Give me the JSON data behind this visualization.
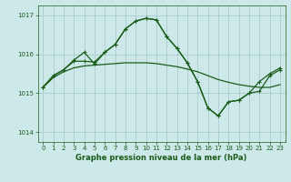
{
  "bg_color": "#cce8e8",
  "grid_color": "#aacccc",
  "line_color": "#1a5c1a",
  "title": "Graphe pression niveau de la mer (hPa)",
  "xlim": [
    -0.5,
    23.5
  ],
  "ylim": [
    1013.75,
    1017.25
  ],
  "yticks": [
    1014,
    1015,
    1016,
    1017
  ],
  "xticks": [
    0,
    1,
    2,
    3,
    4,
    5,
    6,
    7,
    8,
    9,
    10,
    11,
    12,
    13,
    14,
    15,
    16,
    17,
    18,
    19,
    20,
    21,
    22,
    23
  ],
  "series1_x": [
    0,
    1,
    2,
    3,
    4,
    5,
    6,
    7,
    8,
    9,
    10,
    11,
    12,
    13,
    14,
    15,
    16,
    17,
    18,
    19,
    20,
    21,
    22,
    23
  ],
  "series1_y": [
    1015.15,
    1015.4,
    1015.55,
    1015.65,
    1015.7,
    1015.72,
    1015.74,
    1015.76,
    1015.78,
    1015.78,
    1015.78,
    1015.76,
    1015.72,
    1015.68,
    1015.62,
    1015.55,
    1015.45,
    1015.35,
    1015.28,
    1015.22,
    1015.18,
    1015.15,
    1015.15,
    1015.22
  ],
  "series2_x": [
    0,
    1,
    2,
    3,
    4,
    5,
    6,
    7,
    8,
    9,
    10,
    11,
    12,
    13,
    14,
    15,
    16,
    17,
    18,
    19,
    20,
    21,
    22,
    23
  ],
  "series2_y": [
    1015.15,
    1015.45,
    1015.6,
    1015.85,
    1016.05,
    1015.75,
    1016.05,
    1016.25,
    1016.65,
    1016.85,
    1016.92,
    1016.88,
    1016.45,
    1016.15,
    1015.78,
    1015.3,
    1014.62,
    1014.42,
    1014.78,
    1014.82,
    1015.0,
    1015.3,
    1015.5,
    1015.65
  ],
  "series3_x": [
    0,
    1,
    2,
    3,
    4,
    5,
    6,
    7,
    8,
    9,
    10,
    11,
    12,
    13,
    14,
    15,
    16,
    17,
    18,
    19,
    20,
    21,
    22,
    23
  ],
  "series3_y": [
    1015.15,
    1015.45,
    1015.6,
    1015.82,
    1015.82,
    1015.8,
    1016.05,
    1016.25,
    1016.65,
    1016.85,
    1016.92,
    1016.88,
    1016.45,
    1016.15,
    1015.78,
    1015.3,
    1014.62,
    1014.42,
    1014.78,
    1014.82,
    1015.0,
    1015.05,
    1015.45,
    1015.6
  ]
}
